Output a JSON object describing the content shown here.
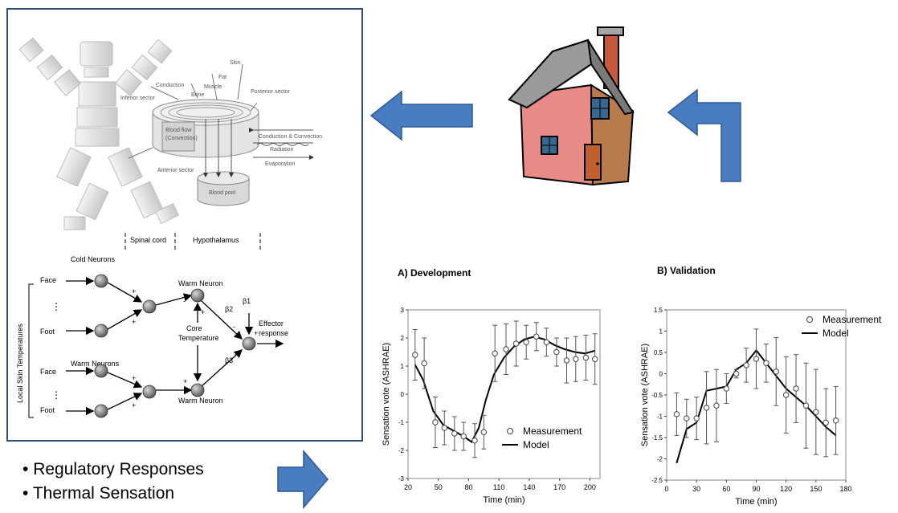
{
  "colors": {
    "arrow_fill": "#4a7cc0",
    "arrow_stroke": "#2d5a95",
    "frame": "#2f4f7a"
  },
  "body_model": {
    "labels": {
      "skin": "Skin",
      "fat": "Fat",
      "muscle": "Muscle",
      "bone": "Bone",
      "conduction": "Conduction",
      "inferior": "Inferior sector",
      "posterior": "Posterior sector",
      "blood_flow": "Blood flow",
      "convection": "(Convection)",
      "anterior": "Anterior sector",
      "blood_pool": "Blood pool",
      "cond_conv": "Conduction & Convection",
      "radiation": "Radiation",
      "evaporation": "Evaporation"
    }
  },
  "neural": {
    "spinal_cord": "Spinal cord",
    "hypothalamus": "Hypothalamus",
    "cold_neurons": "Cold Neurons",
    "warm_neurons": "Warm Neurons",
    "warm_neuron_top": "Warm Neuron",
    "warm_neuron_bottom": "Warm Neuron",
    "core": "Core",
    "temperature": "Temperature",
    "beta1": "β1",
    "beta2": "β2",
    "beta3": "β3",
    "effector": "Effector",
    "response": "response",
    "face1": "Face",
    "foot1": "Foot",
    "face2": "Face",
    "foot2": "Foot",
    "local_skin": "Local Skin Temperatures",
    "plus": "+",
    "minus": "-",
    "dots": "⋮"
  },
  "bullets": [
    "Regulatory Responses",
    "Thermal Sensation"
  ],
  "house_icon": "house-icon",
  "chart_data": [
    {
      "type": "line",
      "title": "A) Development",
      "xlabel": "Time (min)",
      "ylabel": "Sensation vote (ASHRAE)",
      "xlim": [
        20,
        210
      ],
      "ylim": [
        -3,
        3
      ],
      "xticks": [
        20,
        50,
        80,
        110,
        140,
        170,
        200
      ],
      "yticks": [
        -3,
        -2,
        -1,
        0,
        1,
        2,
        3
      ],
      "legend": [
        "Measurement",
        "Model"
      ],
      "legend_position": "bottom-right",
      "measurement": {
        "x": [
          27,
          36,
          47,
          56,
          66,
          75,
          86,
          95,
          106,
          117,
          127,
          137,
          147,
          157,
          167,
          177,
          186,
          196,
          205
        ],
        "y": [
          1.4,
          1.1,
          -1.0,
          -1.2,
          -1.4,
          -1.5,
          -1.65,
          -1.35,
          1.45,
          1.6,
          1.8,
          1.85,
          2.05,
          1.85,
          1.5,
          1.2,
          1.25,
          1.3,
          1.25
        ],
        "err": [
          0.9,
          0.9,
          0.9,
          0.6,
          0.6,
          0.5,
          0.6,
          0.6,
          1.0,
          0.9,
          0.8,
          0.6,
          0.5,
          0.5,
          0.5,
          0.8,
          0.8,
          0.8,
          0.9
        ]
      },
      "model": {
        "x": [
          27,
          35,
          45,
          55,
          65,
          75,
          83,
          90,
          97,
          105,
          115,
          125,
          135,
          145,
          155,
          165,
          175,
          185,
          195,
          205
        ],
        "y": [
          1.05,
          0.5,
          -0.6,
          -1.1,
          -1.3,
          -1.5,
          -1.7,
          -1.2,
          -0.2,
          0.7,
          1.3,
          1.7,
          1.95,
          2.05,
          1.95,
          1.75,
          1.6,
          1.5,
          1.45,
          1.55
        ]
      }
    },
    {
      "type": "line",
      "title": "B) Validation",
      "xlabel": "Time (min)",
      "ylabel": "Sensation vote (ASHRAE)",
      "xlim": [
        0,
        180
      ],
      "ylim": [
        -2.5,
        1.5
      ],
      "xticks": [
        0,
        30,
        60,
        90,
        120,
        150,
        180
      ],
      "yticks": [
        -2.5,
        -2,
        -1.5,
        -1,
        -0.5,
        0,
        0.5,
        1,
        1.5
      ],
      "legend": [
        "Measurement",
        "Model"
      ],
      "legend_position": "top-right",
      "measurement": {
        "x": [
          10,
          20,
          30,
          40,
          50,
          60,
          70,
          80,
          90,
          100,
          110,
          120,
          130,
          140,
          150,
          160,
          170
        ],
        "y": [
          -0.95,
          -1.05,
          -1.05,
          -0.8,
          -0.75,
          -0.35,
          0.0,
          0.2,
          0.35,
          0.25,
          0.05,
          -0.5,
          -0.35,
          -0.75,
          -0.9,
          -1.15,
          -1.1
        ],
        "err": [
          0.5,
          0.45,
          0.5,
          0.85,
          0.85,
          0.35,
          0.1,
          0.4,
          0.7,
          0.45,
          0.8,
          0.9,
          0.8,
          1.0,
          1.0,
          0.8,
          0.8
        ]
      },
      "model": {
        "x": [
          10,
          20,
          30,
          40,
          50,
          60,
          70,
          80,
          90,
          100,
          110,
          120,
          130,
          140,
          150,
          160,
          170
        ],
        "y": [
          -2.1,
          -1.3,
          -1.15,
          -0.4,
          -0.35,
          -0.3,
          0.1,
          0.25,
          0.55,
          0.25,
          -0.05,
          -0.35,
          -0.55,
          -0.75,
          -1.0,
          -1.25,
          -1.45
        ]
      }
    }
  ]
}
